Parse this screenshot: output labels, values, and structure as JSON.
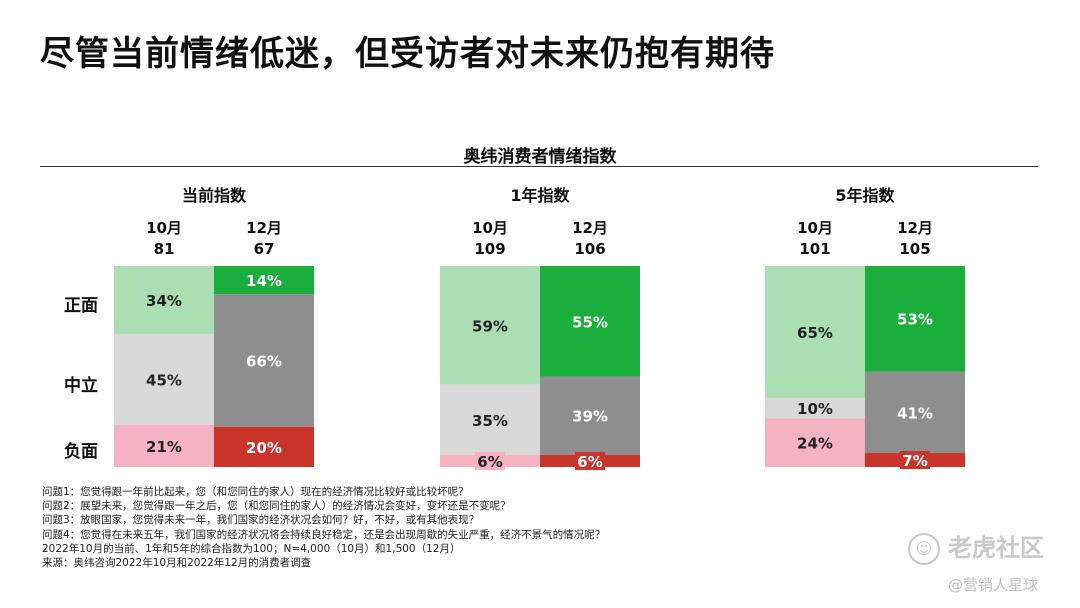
{
  "title": "尽管当前情绪低迷，但受访者对未来仍抱有期待",
  "row_labels": {
    "positive": "正面",
    "neutral": "中立",
    "negative": "负面"
  },
  "colors": {
    "positive_oct": "#acdeb3",
    "positive_dec": "#1aae3d",
    "neutral_oct": "#d8d8d8",
    "neutral_dec": "#8e8e8e",
    "negative_oct": "#f4b2c3",
    "negative_dec": "#c9342b"
  },
  "notes": [
    "问题1：您觉得跟一年前比起来，您（和您同住的家人）现在的经济情况比较好或比较坏呢？",
    "问题2：展望未来，您觉得跟一年之后，您（和您同住的家人）的经济情况会变好，变坏还是不变呢？",
    "问题3：放眼国家，您觉得未来一年，我们国家的经济状况会如何？好，不好，或有其他表现？",
    "问题4：您觉得在未来五年，我们国家的经济状况将会持续良好稳定，还是会出现周歇的失业严重，经济不景气的情况呢？",
    "2022年10月的当前、1年和5年的综合指数为100；N=4,000（10月）和1,500（12月）",
    "来源：奥纬咨询2022年10月和2022年12月的消费者调查"
  ],
  "watermark": {
    "main": "老虎社区",
    "sub": "@营销人星球"
  },
  "chart_data": {
    "type": "bar",
    "title": "奥纬消费者情绪指数",
    "stacked": true,
    "percent_stacked": true,
    "segments": [
      "正面",
      "中立",
      "负面"
    ],
    "groups": [
      {
        "name": "当前指数",
        "bars": [
          {
            "month": "10月",
            "index": "81",
            "values": [
              34,
              45,
              21
            ]
          },
          {
            "month": "12月",
            "index": "67",
            "values": [
              14,
              66,
              20
            ]
          }
        ]
      },
      {
        "name": "1年指数",
        "bars": [
          {
            "month": "10月",
            "index": "109",
            "values": [
              59,
              35,
              6
            ]
          },
          {
            "month": "12月",
            "index": "106",
            "values": [
              55,
              39,
              6
            ]
          }
        ]
      },
      {
        "name": "5年指数",
        "bars": [
          {
            "month": "10月",
            "index": "101",
            "values": [
              65,
              10,
              24
            ]
          },
          {
            "month": "12月",
            "index": "105",
            "values": [
              53,
              41,
              7
            ]
          }
        ]
      }
    ]
  }
}
